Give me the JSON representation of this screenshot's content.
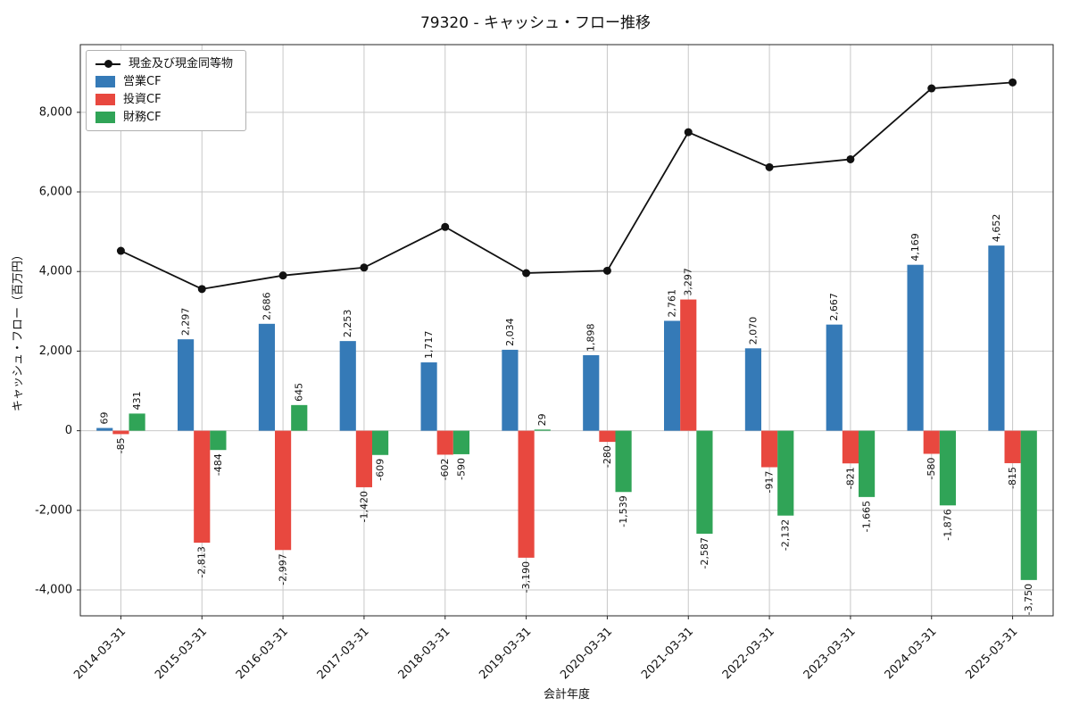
{
  "chart_data": {
    "type": "bar",
    "title": "79320 - キャッシュ・フロー推移",
    "xlabel": "会計年度",
    "ylabel": "キャッシュ・フロー（百万円）",
    "categories": [
      "2014-03-31",
      "2015-03-31",
      "2016-03-31",
      "2017-03-31",
      "2018-03-31",
      "2019-03-31",
      "2020-03-31",
      "2021-03-31",
      "2022-03-31",
      "2023-03-31",
      "2024-03-31",
      "2025-03-31"
    ],
    "series": [
      {
        "name": "営業CF",
        "type": "bar",
        "color": "#357ab7",
        "values": [
          69,
          2297,
          2686,
          2253,
          1717,
          2034,
          1898,
          2761,
          2070,
          2667,
          4169,
          4652
        ]
      },
      {
        "name": "投資CF",
        "type": "bar",
        "color": "#e8483f",
        "values": [
          -85,
          -2813,
          -2997,
          -1420,
          -602,
          -3190,
          -280,
          3297,
          -917,
          -821,
          -580,
          -815
        ]
      },
      {
        "name": "財務CF",
        "type": "bar",
        "color": "#30a457",
        "values": [
          431,
          -484,
          645,
          -609,
          -590,
          29,
          -1539,
          -2587,
          -2132,
          -1665,
          -1876,
          -3750
        ]
      },
      {
        "name": "現金及び現金同等物",
        "type": "line",
        "color": "#111111",
        "values": [
          4520,
          3560,
          3900,
          4100,
          5120,
          3960,
          4020,
          7500,
          6620,
          6820,
          8600,
          8750
        ]
      }
    ],
    "yticks": [
      -4000,
      -2000,
      0,
      2000,
      4000,
      6000,
      8000
    ],
    "ylim": [
      -4650,
      9700
    ],
    "grid": true,
    "grid_color": "#c8c8c8",
    "legend_position": "upper left"
  }
}
